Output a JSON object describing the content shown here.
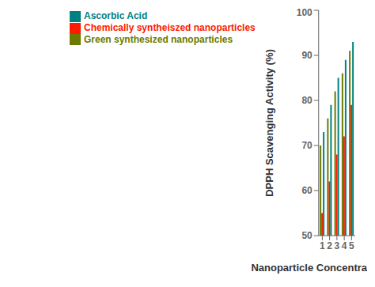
{
  "chart_data": {
    "type": "bar",
    "categories": [
      "1",
      "2",
      "3",
      "4",
      "5"
    ],
    "series": [
      {
        "name": "Green synthesized nanoparticles",
        "color": "#6b7a00",
        "values": [
          70,
          76,
          82,
          86,
          91
        ]
      },
      {
        "name": "Chemically syntheiszed nanoparticles",
        "color": "#ff1a00",
        "values": [
          55,
          62,
          68,
          72,
          79
        ]
      },
      {
        "name": "Ascorbic Acid",
        "color": "#008080",
        "values": [
          73,
          79,
          85,
          89,
          93
        ]
      }
    ],
    "xlabel": "Nanoparticle Concentration (µg/ml)",
    "ylabel": "DPPH Scavenging Activity (%)",
    "ylim": [
      50,
      100
    ],
    "yticks": [
      50,
      60,
      70,
      80,
      90,
      100
    ],
    "grid": false,
    "legend": "upper left"
  }
}
